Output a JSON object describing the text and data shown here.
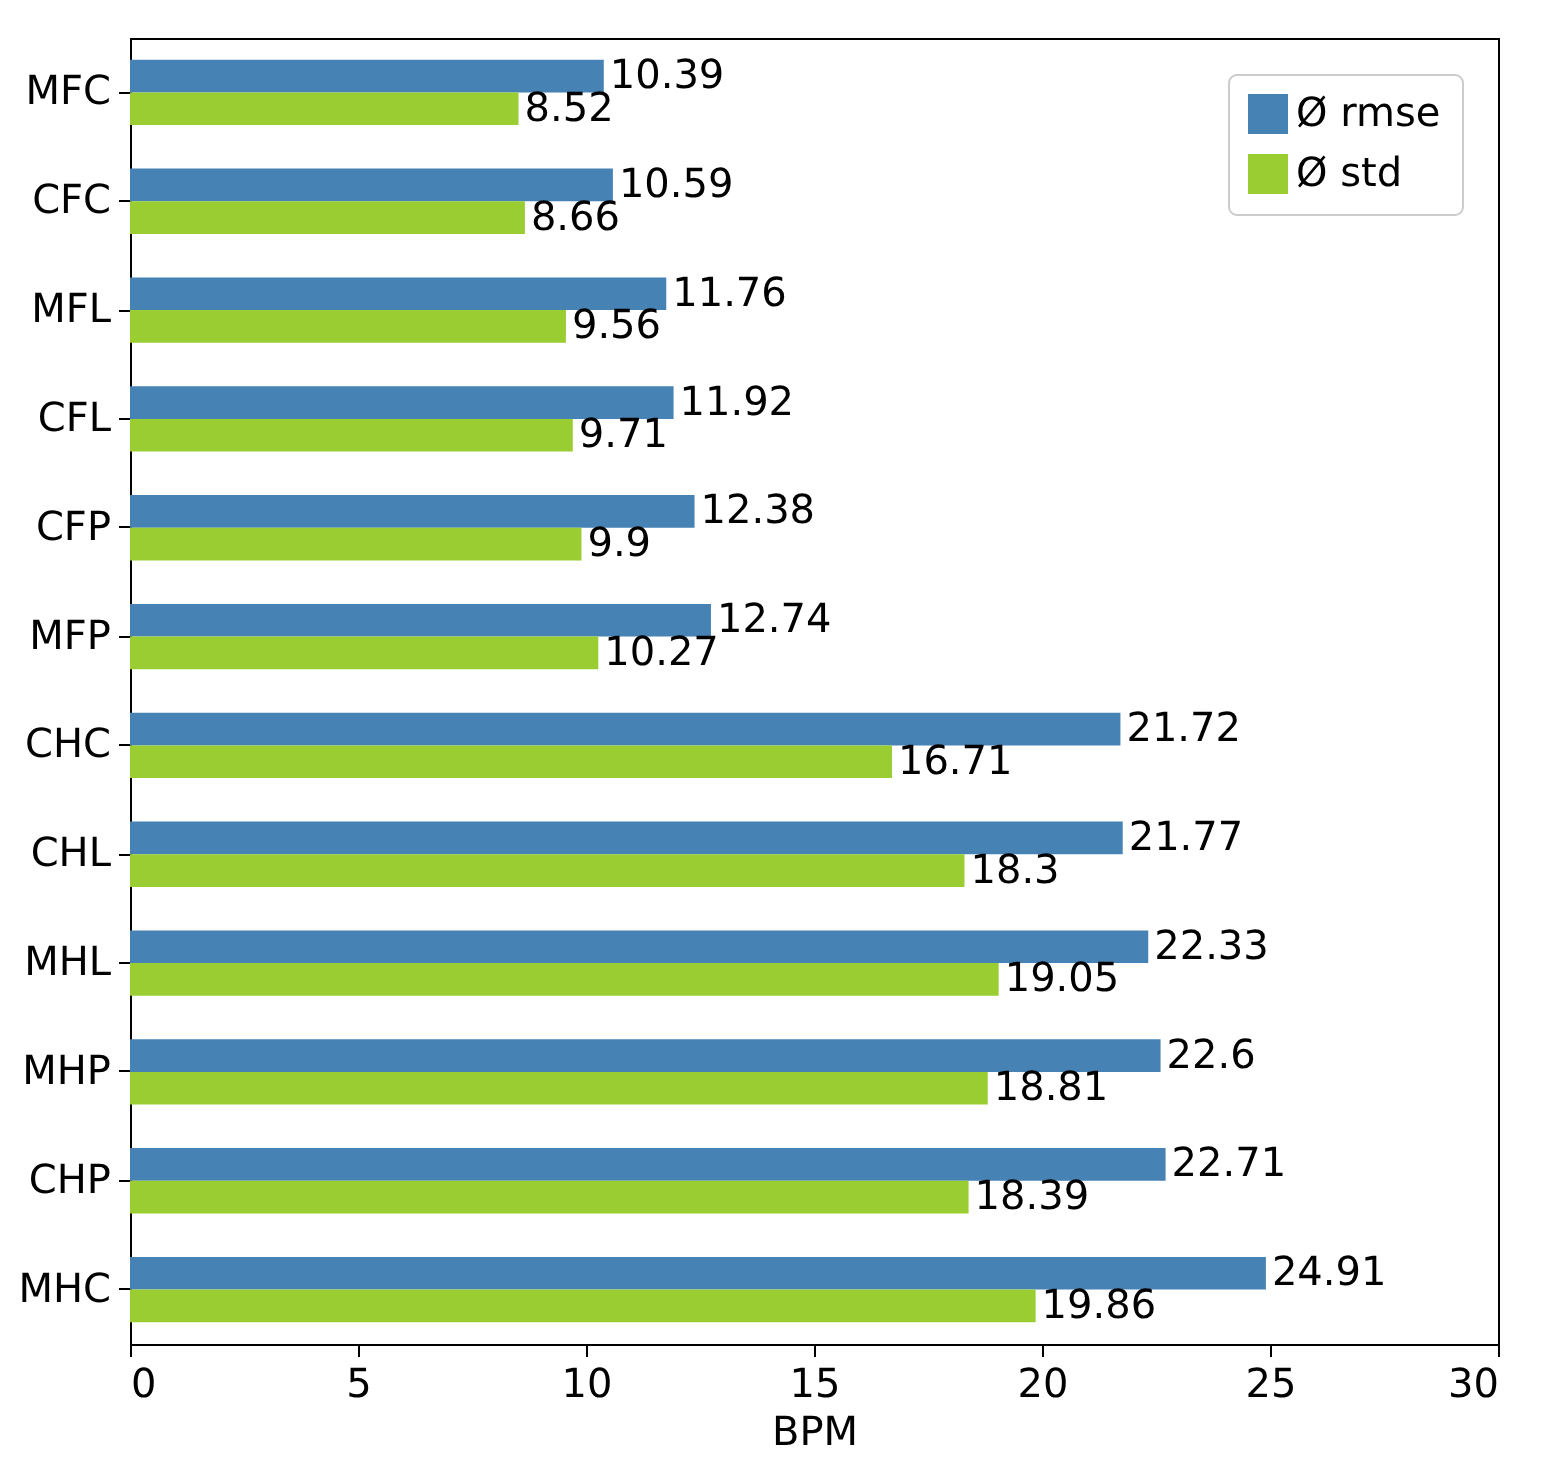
{
  "chart_data": {
    "type": "bar",
    "orientation": "horizontal",
    "xlabel": "BPM",
    "categories": [
      "MFC",
      "CFC",
      "MFL",
      "CFL",
      "CFP",
      "MFP",
      "CHC",
      "CHL",
      "MHL",
      "MHP",
      "CHP",
      "MHC"
    ],
    "series": [
      {
        "name": "Ø rmse",
        "color": "#4682b4",
        "values": [
          10.39,
          10.59,
          11.76,
          11.92,
          12.38,
          12.74,
          21.72,
          21.77,
          22.33,
          22.6,
          22.71,
          24.91
        ]
      },
      {
        "name": "Ø std",
        "color": "#9acd32",
        "values": [
          8.52,
          8.66,
          9.56,
          9.71,
          9.9,
          10.27,
          16.71,
          18.3,
          19.05,
          18.81,
          18.39,
          19.86
        ]
      }
    ],
    "xlim": [
      0,
      30
    ],
    "xticks": [
      0,
      5,
      10,
      15,
      20,
      25,
      30
    ],
    "data_labels": true,
    "legend": "top right",
    "grid": false
  }
}
